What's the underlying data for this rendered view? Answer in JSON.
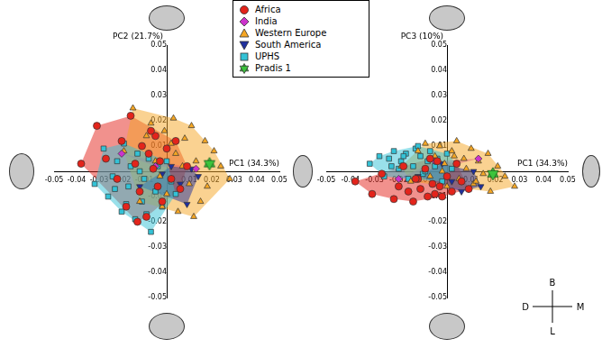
{
  "chart_data": [
    {
      "type": "scatter",
      "x_label": "PC1 (34.3%)",
      "y_label": "PC2 (21.7%)",
      "xlim": [
        -0.05,
        0.05
      ],
      "ylim": [
        -0.05,
        0.05
      ],
      "xticks": [
        -0.05,
        -0.04,
        -0.03,
        -0.02,
        -0.01,
        0.01,
        0.02,
        0.03,
        0.04,
        0.05
      ],
      "yticks": [
        -0.05,
        -0.04,
        -0.03,
        -0.02,
        -0.01,
        0.01,
        0.02,
        0.03,
        0.04,
        0.05
      ],
      "grid": false,
      "legend": "top",
      "series": [
        {
          "name": "Africa",
          "color": "#e3241b",
          "marker": "circle",
          "x": [
            -0.038,
            -0.031,
            -0.027,
            -0.022,
            -0.02,
            -0.018,
            -0.016,
            -0.014,
            -0.012,
            -0.011,
            -0.009,
            -0.008,
            -0.006,
            -0.005,
            -0.004,
            -0.003,
            -0.002,
            0,
            0.002,
            0.004,
            0.006,
            0.009,
            -0.013,
            -0.007
          ],
          "y": [
            0.003,
            0.018,
            0.005,
            -0.003,
            0.012,
            -0.014,
            0.022,
            0.003,
            -0.008,
            0.01,
            -0.018,
            0.007,
            0.001,
            0.014,
            -0.006,
            0.004,
            -0.012,
            0.009,
            -0.003,
            0.012,
            -0.007,
            0.002,
            -0.02,
            0.016
          ]
        },
        {
          "name": "India",
          "color": "#cc33cc",
          "marker": "diamond",
          "x": [
            -0.02,
            -0.005,
            0.013
          ],
          "y": [
            0.007,
            0.002,
            0.001
          ]
        },
        {
          "name": "Western Europe",
          "color": "#f5a623",
          "marker": "triangle",
          "x": [
            -0.019,
            -0.015,
            -0.012,
            -0.009,
            -0.007,
            -0.005,
            -0.003,
            -0.001,
            0,
            0.002,
            0.004,
            0.005,
            0.007,
            0.008,
            0.01,
            0.011,
            0.013,
            0.015,
            0.017,
            0.018,
            0.021,
            0.024,
            0.028,
            0.003,
            -0.002,
            0.012
          ],
          "y": [
            0.008,
            0.025,
            -0.012,
            0.014,
            0.019,
            0.004,
            -0.002,
            0.016,
            -0.009,
            0.011,
            0.007,
            -0.016,
            0.002,
            0.013,
            -0.005,
            0.018,
            0.004,
            -0.012,
            0.012,
            -0.006,
            0.008,
            0.002,
            -0.003,
            0.021,
            -0.014,
            -0.018
          ]
        },
        {
          "name": "South America",
          "color": "#1f2f9e",
          "marker": "triangle-down",
          "x": [
            -0.012,
            -0.002,
            0.002,
            0.006,
            0.009,
            0.011,
            0.014
          ],
          "y": [
            -0.006,
            -0.001,
            0.002,
            -0.005,
            -0.013,
            0.001,
            -0.002
          ]
        },
        {
          "name": "UPHS",
          "color": "#33c2d6",
          "marker": "square",
          "x": [
            -0.032,
            -0.028,
            -0.026,
            -0.024,
            -0.022,
            -0.02,
            -0.019,
            -0.017,
            -0.016,
            -0.014,
            -0.013,
            -0.011,
            -0.01,
            -0.008,
            -0.007,
            -0.005,
            -0.004,
            -0.002,
            0,
            0.002,
            0.004,
            -0.023,
            -0.018,
            -0.009,
            -0.012
          ],
          "y": [
            -0.005,
            0.009,
            -0.01,
            -0.002,
            0.004,
            -0.016,
            0.011,
            -0.006,
            0.002,
            -0.019,
            0.007,
            -0.012,
            -0.003,
            0.005,
            -0.024,
            -0.008,
            0.002,
            -0.014,
            0.004,
            -0.004,
            -0.009,
            -0.007,
            -0.013,
            -0.017,
            0
          ]
        },
        {
          "name": "Pradis 1",
          "color": "#3cc43c",
          "marker": "star",
          "x": [
            0.019
          ],
          "y": [
            0.003
          ]
        }
      ]
    },
    {
      "type": "scatter",
      "x_label": "PC1 (34.3%)",
      "y_label": "PC3 (10%)",
      "xlim": [
        -0.05,
        0.05
      ],
      "ylim": [
        -0.05,
        0.05
      ],
      "xticks": [
        -0.05,
        -0.04,
        -0.03,
        -0.02,
        -0.01,
        0.01,
        0.02,
        0.03,
        0.04,
        0.05
      ],
      "yticks": [
        -0.05,
        -0.04,
        -0.03,
        -0.02,
        -0.01,
        0.01,
        0.02,
        0.03,
        0.04,
        0.05
      ],
      "grid": false,
      "series": [
        {
          "name": "Africa",
          "color": "#e3241b",
          "marker": "circle",
          "x": [
            -0.038,
            -0.031,
            -0.027,
            -0.022,
            -0.02,
            -0.018,
            -0.016,
            -0.014,
            -0.012,
            -0.011,
            -0.009,
            -0.008,
            -0.006,
            -0.005,
            -0.004,
            -0.003,
            -0.002,
            0,
            0.002,
            0.004,
            0.006,
            0.009,
            -0.013,
            -0.007
          ],
          "y": [
            -0.004,
            -0.009,
            -0.001,
            -0.011,
            -0.006,
            0.002,
            -0.008,
            -0.012,
            -0.003,
            -0.007,
            0.001,
            -0.01,
            -0.005,
            -0.009,
            0.004,
            -0.006,
            -0.01,
            -0.002,
            -0.008,
            0.003,
            -0.004,
            -0.007,
            -0.003,
            0.005
          ]
        },
        {
          "name": "India",
          "color": "#cc33cc",
          "marker": "diamond",
          "x": [
            -0.02,
            -0.005,
            0.013
          ],
          "y": [
            -0.003,
            0.004,
            0.005
          ]
        },
        {
          "name": "Western Europe",
          "color": "#f5a623",
          "marker": "triangle",
          "x": [
            -0.019,
            -0.015,
            -0.012,
            -0.009,
            -0.007,
            -0.005,
            -0.003,
            -0.001,
            0,
            0.002,
            0.004,
            0.005,
            0.007,
            0.008,
            0.01,
            0.011,
            0.013,
            0.015,
            0.017,
            0.018,
            0.021,
            0.024,
            0.028,
            0.003,
            -0.002,
            0.012
          ],
          "y": [
            0.002,
            -0.004,
            0.008,
            0.011,
            -0.002,
            0.006,
            0.01,
            0.003,
            -0.006,
            0.008,
            0.012,
            -0.003,
            0.005,
            0.001,
            0.009,
            -0.005,
            0.004,
            -0.001,
            0.007,
            -0.008,
            0.002,
            -0.002,
            -0.006,
            0.006,
            0,
            -0.004
          ]
        },
        {
          "name": "South America",
          "color": "#1f2f9e",
          "marker": "triangle-down",
          "x": [
            -0.012,
            -0.002,
            0.002,
            0.006,
            0.009,
            0.011,
            0.014
          ],
          "y": [
            -0.002,
            0.003,
            -0.004,
            -0.008,
            -0.007,
            0,
            -0.006
          ]
        },
        {
          "name": "UPHS",
          "color": "#33c2d6",
          "marker": "square",
          "x": [
            -0.032,
            -0.028,
            -0.026,
            -0.024,
            -0.022,
            -0.02,
            -0.019,
            -0.017,
            -0.016,
            -0.014,
            -0.013,
            -0.011,
            -0.01,
            -0.008,
            -0.007,
            -0.005,
            -0.004,
            -0.002,
            0,
            0.002,
            0.004,
            -0.023,
            -0.018,
            -0.009,
            -0.012
          ],
          "y": [
            0.003,
            0.006,
            -0.002,
            0.005,
            0.008,
            0.001,
            0.004,
            0.007,
            -0.003,
            0.002,
            0.009,
            0.006,
            -0.001,
            0.004,
            0.008,
            0.002,
            0.005,
            -0.004,
            0.007,
            0.001,
            0.003,
            0.002,
            0.006,
            0,
            0.01
          ]
        },
        {
          "name": "Pradis 1",
          "color": "#3cc43c",
          "marker": "star",
          "x": [
            0.019
          ],
          "y": [
            -0.001
          ]
        }
      ]
    }
  ],
  "orientation_key": {
    "top": "B",
    "left": "D",
    "right": "M",
    "bottom": "L"
  }
}
